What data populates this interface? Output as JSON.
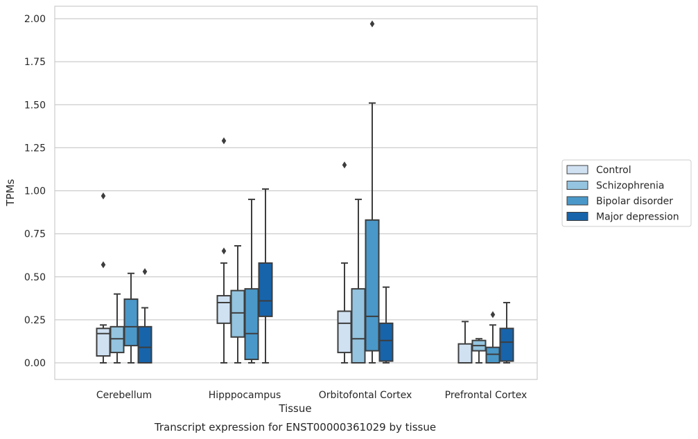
{
  "caption": "Transcript expression for ENST00000361029 by tissue",
  "chart_data": {
    "type": "box",
    "xlabel": "Tissue",
    "ylabel": "TPMs",
    "ylim": [
      -0.1,
      2.07
    ],
    "yticks": [
      0.0,
      0.25,
      0.5,
      0.75,
      1.0,
      1.25,
      1.5,
      1.75,
      2.0
    ],
    "ytick_labels": [
      "0.00",
      "0.25",
      "0.50",
      "0.75",
      "1.00",
      "1.25",
      "1.50",
      "1.75",
      "2.00"
    ],
    "grid": "horizontal",
    "legend_position": "right",
    "categories": [
      "Cerebellum",
      "Hipppocampus",
      "Orbitofontal Cortex",
      "Prefrontal Cortex"
    ],
    "series": [
      {
        "name": "Control",
        "color": "#d0e1f2",
        "boxes": [
          {
            "whislo": 0.0,
            "q1": 0.04,
            "med": 0.17,
            "q3": 0.2,
            "whishi": 0.22,
            "fliers": [
              0.57,
              0.97
            ]
          },
          {
            "whislo": 0.0,
            "q1": 0.23,
            "med": 0.35,
            "q3": 0.39,
            "whishi": 0.58,
            "fliers": [
              0.65,
              1.29
            ]
          },
          {
            "whislo": 0.0,
            "q1": 0.06,
            "med": 0.23,
            "q3": 0.3,
            "whishi": 0.58,
            "fliers": [
              1.15
            ]
          },
          {
            "whislo": 0.0,
            "q1": 0.0,
            "med": 0.0,
            "q3": 0.11,
            "whishi": 0.24,
            "fliers": []
          }
        ]
      },
      {
        "name": "Schizophrenia",
        "color": "#94c4df",
        "boxes": [
          {
            "whislo": 0.0,
            "q1": 0.06,
            "med": 0.14,
            "q3": 0.21,
            "whishi": 0.4,
            "fliers": []
          },
          {
            "whislo": 0.0,
            "q1": 0.15,
            "med": 0.29,
            "q3": 0.42,
            "whishi": 0.68,
            "fliers": []
          },
          {
            "whislo": 0.0,
            "q1": 0.0,
            "med": 0.14,
            "q3": 0.43,
            "whishi": 0.95,
            "fliers": []
          },
          {
            "whislo": 0.0,
            "q1": 0.07,
            "med": 0.1,
            "q3": 0.13,
            "whishi": 0.14,
            "fliers": []
          }
        ]
      },
      {
        "name": "Bipolar disorder",
        "color": "#4a98c9",
        "boxes": [
          {
            "whislo": 0.0,
            "q1": 0.1,
            "med": 0.21,
            "q3": 0.37,
            "whishi": 0.52,
            "fliers": []
          },
          {
            "whislo": 0.0,
            "q1": 0.02,
            "med": 0.17,
            "q3": 0.43,
            "whishi": 0.95,
            "fliers": []
          },
          {
            "whislo": 0.0,
            "q1": 0.07,
            "med": 0.27,
            "q3": 0.83,
            "whishi": 1.51,
            "fliers": [
              1.97
            ]
          },
          {
            "whislo": 0.0,
            "q1": 0.0,
            "med": 0.05,
            "q3": 0.09,
            "whishi": 0.22,
            "fliers": [
              0.28
            ]
          }
        ]
      },
      {
        "name": "Major depression",
        "color": "#1764ab",
        "boxes": [
          {
            "whislo": 0.0,
            "q1": 0.0,
            "med": 0.09,
            "q3": 0.21,
            "whishi": 0.32,
            "fliers": [
              0.53
            ]
          },
          {
            "whislo": 0.0,
            "q1": 0.27,
            "med": 0.36,
            "q3": 0.58,
            "whishi": 1.01,
            "fliers": []
          },
          {
            "whislo": 0.0,
            "q1": 0.01,
            "med": 0.13,
            "q3": 0.23,
            "whishi": 0.44,
            "fliers": []
          },
          {
            "whislo": 0.0,
            "q1": 0.01,
            "med": 0.12,
            "q3": 0.2,
            "whishi": 0.35,
            "fliers": []
          }
        ]
      }
    ]
  }
}
